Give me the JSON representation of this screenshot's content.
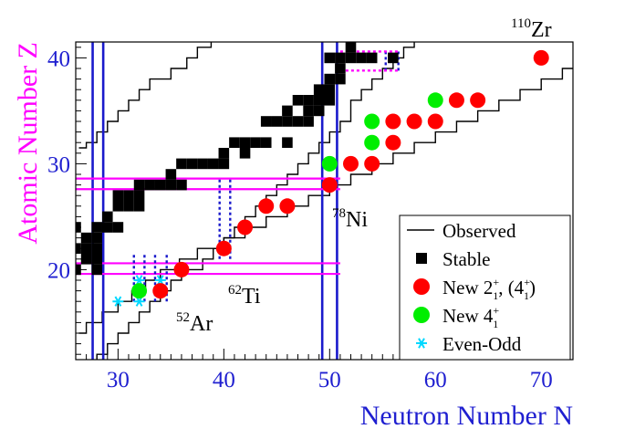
{
  "chart_data": {
    "type": "scatter",
    "xlabel": "Neutron Number N",
    "ylabel": "Atomic Number Z",
    "xlim": [
      26,
      73
    ],
    "ylim": [
      11.5,
      41.5
    ],
    "x_ticks": [
      30,
      40,
      50,
      60,
      70
    ],
    "y_ticks": [
      20,
      30,
      40
    ],
    "grid": false,
    "legend_position": "bottom-right",
    "colors": {
      "axis_labels": "#ff00ff",
      "x_axis_label": "#1f1fd0",
      "tick_labels": "#1f1fd0",
      "stable": "#000000",
      "new21": "#ff0000",
      "new41": "#00ee00",
      "even_odd": "#00d8ff",
      "solid_lines_blue": "#1a1acc",
      "solid_lines_magenta": "#ff00ff",
      "dotted_blue": "#1a1acc",
      "dotted_magenta": "#ff00ff"
    },
    "annotations": [
      {
        "sup": "110",
        "base": "Zr",
        "n": 70,
        "z": 40
      },
      {
        "sup": "78",
        "base": "Ni",
        "n": 50,
        "z": 28
      },
      {
        "sup": "62",
        "base": "Ti",
        "n": 40,
        "z": 22
      },
      {
        "sup": "52",
        "base": "Ar",
        "n": 34,
        "z": 18
      }
    ],
    "legend": [
      {
        "key": "observed",
        "label": "Observed"
      },
      {
        "key": "stable",
        "label": "Stable"
      },
      {
        "key": "new21",
        "label": "New 2",
        "sup": "+",
        "sub": "1",
        "extra": ", (4",
        "extra_sup": "+",
        "extra_sub": "1",
        "extra_tail": ")"
      },
      {
        "key": "new41",
        "label": "New 4",
        "sup": "+",
        "sub": "1"
      },
      {
        "key": "even_odd",
        "label": "Even-Odd"
      }
    ],
    "series": [
      {
        "name": "Observed",
        "kind": "boundary",
        "lower": [
          [
            26.3,
            14
          ],
          [
            27,
            15
          ],
          [
            28.5,
            16
          ],
          [
            30,
            17
          ],
          [
            31.3,
            18
          ],
          [
            32.6,
            19
          ],
          [
            34,
            20
          ],
          [
            35.8,
            21
          ],
          [
            37.5,
            22
          ],
          [
            40,
            23
          ],
          [
            42,
            24
          ],
          [
            44,
            25
          ],
          [
            46,
            26
          ],
          [
            48,
            27
          ],
          [
            50,
            28
          ],
          [
            52,
            29
          ],
          [
            54,
            30
          ],
          [
            56,
            31
          ],
          [
            58,
            32
          ],
          [
            60,
            33
          ],
          [
            62,
            34
          ],
          [
            64,
            35
          ],
          [
            66,
            36
          ],
          [
            68,
            37
          ],
          [
            70,
            38
          ],
          [
            72,
            39
          ],
          [
            73,
            39
          ]
        ],
        "upper": [
          [
            26.3,
            31.5
          ],
          [
            27,
            32
          ],
          [
            28,
            33
          ],
          [
            29,
            34
          ],
          [
            30,
            35
          ],
          [
            31,
            36
          ],
          [
            32,
            37
          ],
          [
            33,
            38
          ],
          [
            35,
            39
          ],
          [
            36.5,
            40
          ],
          [
            37.5,
            41
          ],
          [
            38.8,
            41.5
          ]
        ],
        "inner": [
          [
            28,
            11.5
          ],
          [
            28,
            12
          ],
          [
            29,
            13
          ],
          [
            30,
            14
          ],
          [
            31,
            15
          ],
          [
            32,
            16
          ],
          [
            33,
            17
          ],
          [
            34,
            18
          ],
          [
            35,
            19
          ],
          [
            36,
            20
          ],
          [
            38,
            21
          ],
          [
            39,
            22
          ],
          [
            40,
            23
          ],
          [
            41,
            24
          ],
          [
            42,
            25
          ],
          [
            43,
            26
          ],
          [
            44,
            27
          ],
          [
            45,
            28
          ],
          [
            46,
            29
          ],
          [
            47,
            30
          ],
          [
            48,
            31
          ],
          [
            49,
            32
          ],
          [
            50,
            33
          ],
          [
            51,
            34
          ],
          [
            52,
            36
          ],
          [
            53,
            37
          ],
          [
            54,
            38
          ],
          [
            55,
            39
          ],
          [
            56,
            40
          ],
          [
            57,
            41
          ],
          [
            58,
            41.5
          ]
        ]
      },
      {
        "name": "Stable",
        "kind": "square",
        "points": [
          [
            26,
            20
          ],
          [
            26,
            22
          ],
          [
            27,
            21
          ],
          [
            27,
            22
          ],
          [
            27,
            23
          ],
          [
            26,
            24
          ],
          [
            28,
            20
          ],
          [
            28,
            21
          ],
          [
            28,
            22
          ],
          [
            28,
            23
          ],
          [
            28,
            24
          ],
          [
            29,
            24
          ],
          [
            29,
            25
          ],
          [
            30,
            24
          ],
          [
            30,
            26
          ],
          [
            30,
            27
          ],
          [
            31,
            26
          ],
          [
            32,
            26
          ],
          [
            31,
            27
          ],
          [
            32,
            27
          ],
          [
            32,
            28
          ],
          [
            33,
            28
          ],
          [
            34,
            28
          ],
          [
            35,
            28
          ],
          [
            35,
            29
          ],
          [
            36,
            28
          ],
          [
            36,
            30
          ],
          [
            37,
            30
          ],
          [
            38,
            30
          ],
          [
            39,
            30
          ],
          [
            40,
            30
          ],
          [
            40,
            31
          ],
          [
            41,
            32
          ],
          [
            42,
            31
          ],
          [
            42,
            32
          ],
          [
            43,
            32
          ],
          [
            44,
            32
          ],
          [
            44,
            34
          ],
          [
            45,
            34
          ],
          [
            46,
            32
          ],
          [
            46,
            34
          ],
          [
            46,
            35
          ],
          [
            47,
            34
          ],
          [
            47,
            36
          ],
          [
            48,
            34
          ],
          [
            48,
            35
          ],
          [
            48,
            36
          ],
          [
            49,
            35
          ],
          [
            49,
            36
          ],
          [
            49,
            37
          ],
          [
            50,
            36
          ],
          [
            50,
            37
          ],
          [
            50,
            38
          ],
          [
            50,
            40
          ],
          [
            51,
            38
          ],
          [
            51,
            39
          ],
          [
            51,
            40
          ],
          [
            52,
            40
          ],
          [
            52,
            41
          ],
          [
            53,
            40
          ],
          [
            54,
            40
          ],
          [
            56,
            40
          ]
        ]
      },
      {
        "name": "New 2+1, (4+1)",
        "kind": "red-circle",
        "points": [
          [
            34,
            18
          ],
          [
            36,
            20
          ],
          [
            40,
            22
          ],
          [
            42,
            24
          ],
          [
            44,
            26
          ],
          [
            46,
            26
          ],
          [
            50,
            28
          ],
          [
            52,
            30
          ],
          [
            54,
            30
          ],
          [
            56,
            32
          ],
          [
            56,
            34
          ],
          [
            58,
            34
          ],
          [
            60,
            34
          ],
          [
            62,
            36
          ],
          [
            64,
            36
          ],
          [
            70,
            40
          ]
        ]
      },
      {
        "name": "New 4+1",
        "kind": "green-circle",
        "points": [
          [
            32,
            18
          ],
          [
            50,
            30
          ],
          [
            54,
            32
          ],
          [
            54,
            34
          ],
          [
            60,
            36
          ]
        ]
      },
      {
        "name": "Even-Odd",
        "kind": "cyan-star",
        "points": [
          [
            30,
            17
          ],
          [
            32,
            17
          ],
          [
            32,
            19
          ],
          [
            34,
            19
          ]
        ]
      }
    ],
    "guide_lines": {
      "solid_vertical_blue": [
        27.6,
        28.6,
        49.3,
        50.7
      ],
      "solid_horizontal_magenta": [
        19.6,
        20.6,
        27.6,
        28.6
      ],
      "dotted_vertical_blue": [
        [
          31.5,
          17,
          21.6
        ],
        [
          32.5,
          17,
          21.6
        ],
        [
          33.5,
          17,
          21.6
        ],
        [
          34.6,
          17,
          21.6
        ],
        [
          39.6,
          21,
          28.6
        ],
        [
          40.6,
          21,
          28.6
        ],
        [
          55.3,
          38.8,
          40.6
        ],
        [
          56.5,
          38.8,
          40.6
        ]
      ],
      "dotted_horizontal_magenta": [
        [
          51,
          56.5,
          40.6
        ]
      ]
    }
  }
}
